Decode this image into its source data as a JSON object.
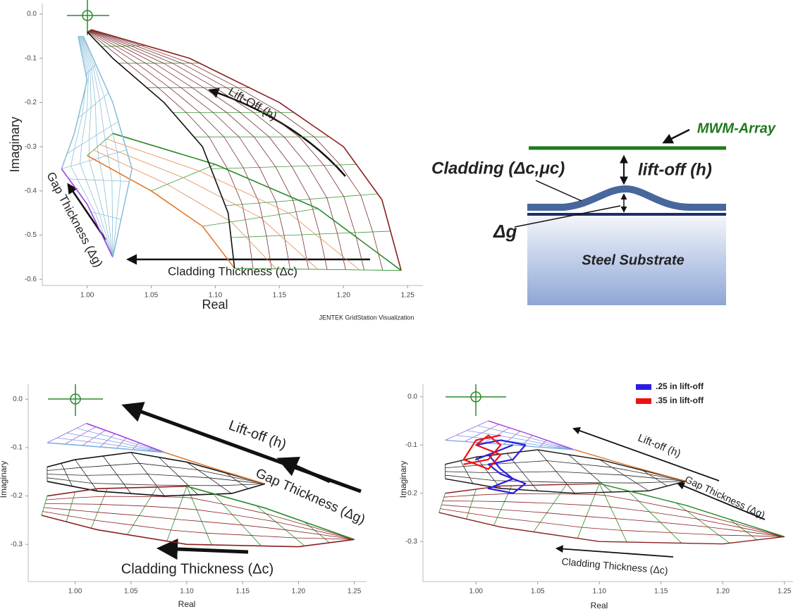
{
  "chart_data": [
    {
      "type": "line",
      "xlabel": "Real",
      "ylabel": "Imaginary",
      "source": "JENTEK GridStation Visualization",
      "xlim": [
        0.965,
        1.262
      ],
      "ylim": [
        -0.614,
        0.024
      ],
      "xticks": [
        {
          "value": 1,
          "label": "1.00"
        },
        {
          "value": 1.05,
          "label": "1.05"
        },
        {
          "value": 1.1,
          "label": "1.10"
        },
        {
          "value": 1.15,
          "label": "1.15"
        },
        {
          "value": 1.2,
          "label": "1.20"
        },
        {
          "value": 1.25,
          "label": "1.25"
        }
      ],
      "yticks": [
        {
          "value": 0,
          "label": "0.0"
        },
        -0.1,
        -0.2,
        -0.3,
        -0.4,
        -0.5,
        -0.6
      ],
      "annotations": [
        "Lift-Off (h)",
        "Gap Thickness (Δg)",
        "Cladding Thickness (Δc)"
      ],
      "series": [
        {
          "color": "#8b2020",
          "x": [
            1.003,
            1.08,
            1.15,
            1.2,
            1.23,
            1.245
          ],
          "values": [
            -0.035,
            -0.1,
            -0.2,
            -0.3,
            -0.42,
            -0.58
          ]
        },
        {
          "color": "#2a8a2a",
          "x": [
            1.02,
            1.1,
            1.18,
            1.245
          ],
          "values": [
            -0.27,
            -0.34,
            -0.44,
            -0.58
          ]
        },
        {
          "color": "#e07a30",
          "x": [
            1.0,
            1.05,
            1.09,
            1.115
          ],
          "values": [
            -0.32,
            -0.4,
            -0.48,
            -0.575
          ]
        },
        {
          "color": "#111111",
          "x": [
            1.0,
            1.02,
            1.06,
            1.09,
            1.11,
            1.115
          ],
          "values": [
            -0.04,
            -0.1,
            -0.2,
            -0.3,
            -0.45,
            -0.575
          ]
        },
        {
          "color": "#8cc0d8",
          "x": [
            0.993,
            1.0,
            0.99,
            0.98
          ],
          "values": [
            -0.05,
            -0.15,
            -0.27,
            -0.35
          ]
        },
        {
          "color": "#a040e0",
          "x": [
            0.98,
            1.0,
            1.02
          ],
          "values": [
            -0.35,
            -0.43,
            -0.55
          ]
        },
        {
          "color": "#8cc0d8",
          "x": [
            0.997,
            1.02,
            1.035,
            1.02
          ],
          "values": [
            -0.05,
            -0.2,
            -0.35,
            -0.55
          ]
        }
      ]
    },
    {
      "type": "line",
      "xlabel": "Real",
      "ylabel": "Imaginary",
      "xlim": [
        0.958,
        1.261
      ],
      "ylim": [
        -0.377,
        0.031
      ],
      "xticks": [
        {
          "value": 1,
          "label": "1.00"
        },
        {
          "value": 1.05,
          "label": "1.05"
        },
        {
          "value": 1.1,
          "label": "1.10"
        },
        {
          "value": 1.15,
          "label": "1.15"
        },
        {
          "value": 1.2,
          "label": "1.20"
        },
        {
          "value": 1.25,
          "label": "1.25"
        }
      ],
      "yticks": [
        {
          "value": 0,
          "label": "0.0"
        },
        -0.1,
        -0.2,
        -0.3
      ],
      "annotations": [
        "Lift-off (h)",
        "Gap Thickness (Δg)",
        "Cladding Thickness (Δc)"
      ],
      "series": [
        {
          "color": "#a040e0",
          "x": [
            1.01,
            1.04,
            1.08
          ],
          "values": [
            -0.05,
            -0.075,
            -0.11
          ]
        },
        {
          "color": "#80b0e0",
          "x": [
            0.975,
            1.03,
            1.08
          ],
          "values": [
            -0.09,
            -0.1,
            -0.11
          ]
        },
        {
          "color": "#111111",
          "x": [
            0.975,
            1.0,
            1.05,
            1.1,
            1.17
          ],
          "values": [
            -0.14,
            -0.125,
            -0.11,
            -0.13,
            -0.175
          ]
        },
        {
          "color": "#e07a30",
          "x": [
            1.08,
            1.12,
            1.17
          ],
          "values": [
            -0.11,
            -0.14,
            -0.175
          ]
        },
        {
          "color": "#111111",
          "x": [
            0.975,
            1.02,
            1.08,
            1.14,
            1.17
          ],
          "values": [
            -0.17,
            -0.19,
            -0.2,
            -0.195,
            -0.175
          ]
        },
        {
          "color": "#8b2020",
          "x": [
            0.975,
            1.02,
            1.1
          ],
          "values": [
            -0.2,
            -0.185,
            -0.18
          ]
        },
        {
          "color": "#2a8a2a",
          "x": [
            1.1,
            1.17,
            1.25
          ],
          "values": [
            -0.18,
            -0.225,
            -0.29
          ]
        },
        {
          "color": "#8b2020",
          "x": [
            0.97,
            1.02,
            1.1,
            1.2,
            1.25
          ],
          "values": [
            -0.24,
            -0.27,
            -0.3,
            -0.305,
            -0.29
          ]
        }
      ]
    },
    {
      "type": "line",
      "xlabel": "Real",
      "ylabel": "Imaginary",
      "xlim": [
        0.957,
        1.257
      ],
      "ylim": [
        -0.383,
        0.026
      ],
      "xticks": [
        {
          "value": 1,
          "label": "1.00"
        },
        {
          "value": 1.05,
          "label": "1.05"
        },
        {
          "value": 1.1,
          "label": "1.10"
        },
        {
          "value": 1.15,
          "label": "1.15"
        },
        {
          "value": 1.2,
          "label": "1.20"
        },
        {
          "value": 1.25,
          "label": "1.25"
        }
      ],
      "yticks": [
        {
          "value": 0,
          "label": "0.0"
        },
        -0.1,
        -0.2,
        -0.3
      ],
      "annotations": [
        "Lift-off (h)",
        "Gap Thickness (Δg)",
        "Cladding Thickness (Δc)"
      ],
      "series": [
        {
          "color": "#a040e0",
          "x": [
            1.01,
            1.04,
            1.08
          ],
          "values": [
            -0.05,
            -0.075,
            -0.11
          ]
        },
        {
          "color": "#80b0e0",
          "x": [
            0.975,
            1.03,
            1.08
          ],
          "values": [
            -0.09,
            -0.1,
            -0.11
          ]
        },
        {
          "color": "#111111",
          "x": [
            0.975,
            1.0,
            1.05,
            1.1,
            1.17
          ],
          "values": [
            -0.14,
            -0.125,
            -0.11,
            -0.13,
            -0.175
          ]
        },
        {
          "color": "#e07a30",
          "x": [
            1.08,
            1.12,
            1.17
          ],
          "values": [
            -0.11,
            -0.14,
            -0.175
          ]
        },
        {
          "color": "#111111",
          "x": [
            0.975,
            1.02,
            1.08,
            1.14,
            1.17
          ],
          "values": [
            -0.17,
            -0.19,
            -0.2,
            -0.195,
            -0.175
          ]
        },
        {
          "color": "#8b2020",
          "x": [
            0.975,
            1.02,
            1.1
          ],
          "values": [
            -0.2,
            -0.185,
            -0.18
          ]
        },
        {
          "color": "#2a8a2a",
          "x": [
            1.1,
            1.17,
            1.25
          ],
          "values": [
            -0.18,
            -0.225,
            -0.29
          ]
        },
        {
          "color": "#8b2020",
          "x": [
            0.97,
            1.02,
            1.1,
            1.2,
            1.25
          ],
          "values": [
            -0.24,
            -0.27,
            -0.3,
            -0.305,
            -0.29
          ]
        },
        {
          "name": ".25 in lift-off",
          "color": "#2a1ee0",
          "x": [
            1.0,
            1.02,
            1.04,
            1.03,
            1.01,
            1.02,
            1.04,
            1.03,
            1.01,
            1.03,
            1.02,
            1.01,
            1.0,
            1.02,
            1.03
          ],
          "values": [
            -0.1,
            -0.09,
            -0.1,
            -0.13,
            -0.14,
            -0.16,
            -0.18,
            -0.2,
            -0.19,
            -0.17,
            -0.15,
            -0.12,
            -0.13,
            -0.11,
            -0.1
          ]
        },
        {
          "name": ".35 in lift-off",
          "color": "#ee1111",
          "x": [
            0.99,
            1.01,
            1.02,
            1.01,
            1.0,
            1.02,
            1.01,
            0.99,
            1.0,
            1.02
          ],
          "values": [
            -0.14,
            -0.13,
            -0.1,
            -0.08,
            -0.1,
            -0.12,
            -0.15,
            -0.13,
            -0.09,
            -0.08
          ]
        }
      ]
    }
  ],
  "diagram": {
    "sensor": "MWM-Array",
    "cladding": "Cladding (Δc,μc)",
    "liftoff": "lift-off (h)",
    "gap": "Δg",
    "substrate": "Steel Substrate"
  }
}
